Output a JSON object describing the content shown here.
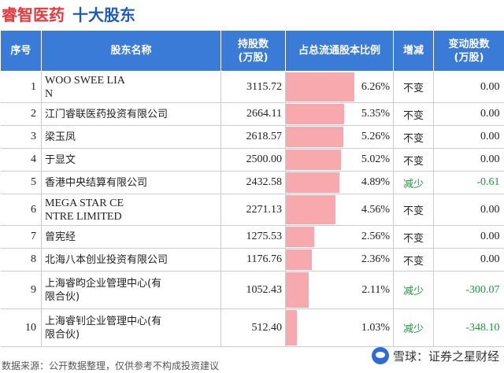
{
  "header": {
    "company": "睿智医药",
    "subtitle": "十大股东"
  },
  "table": {
    "headers": [
      "序号",
      "股东名称",
      "持股数\n(万股)",
      "占总流通股本比例",
      "增减",
      "变动股数\n(万股)"
    ],
    "rows": [
      {
        "idx": "1",
        "name": "WOO SWEE LIA\nN",
        "shares": "3115.72",
        "ratio": "6.26%",
        "ratio_value": 6.26,
        "change": "不变",
        "delta": "0.00"
      },
      {
        "idx": "2",
        "name": "江门睿联医药投资有限公司",
        "shares": "2664.11",
        "ratio": "5.35%",
        "ratio_value": 5.35,
        "change": "不变",
        "delta": "0.00"
      },
      {
        "idx": "3",
        "name": "梁玉凤",
        "shares": "2618.57",
        "ratio": "5.26%",
        "ratio_value": 5.26,
        "change": "不变",
        "delta": "0.00"
      },
      {
        "idx": "4",
        "name": "于显文",
        "shares": "2500.00",
        "ratio": "5.02%",
        "ratio_value": 5.02,
        "change": "不变",
        "delta": "0.00"
      },
      {
        "idx": "5",
        "name": "香港中央结算有限公司",
        "shares": "2432.58",
        "ratio": "4.89%",
        "ratio_value": 4.89,
        "change": "减少",
        "delta": "-0.61"
      },
      {
        "idx": "6",
        "name": "MEGA STAR CE\nNTRE LIMITED",
        "shares": "2271.13",
        "ratio": "4.56%",
        "ratio_value": 4.56,
        "change": "不变",
        "delta": "0.00"
      },
      {
        "idx": "7",
        "name": "曾宪经",
        "shares": "1275.53",
        "ratio": "2.56%",
        "ratio_value": 2.56,
        "change": "不变",
        "delta": "0.00"
      },
      {
        "idx": "8",
        "name": "北海八本创业投资有限公司",
        "shares": "1176.76",
        "ratio": "2.36%",
        "ratio_value": 2.36,
        "change": "不变",
        "delta": "0.00"
      },
      {
        "idx": "9",
        "name": "上海睿昀企业管理中心(有\n限合伙)",
        "shares": "1052.43",
        "ratio": "2.11%",
        "ratio_value": 2.11,
        "change": "减少",
        "delta": "-300.07"
      },
      {
        "idx": "10",
        "name": "上海睿钊企业管理中心(有\n限合伙)",
        "shares": "512.40",
        "ratio": "1.03%",
        "ratio_value": 1.03,
        "change": "减少",
        "delta": "-348.10"
      }
    ]
  },
  "footer": {
    "source": "数据来源：公开数据整理，仅供参考不构成投资建议",
    "brand": "雪球：证券之星财经"
  },
  "colors": {
    "company": "#e5383b",
    "subtitle": "#1f5bbd",
    "header_bg": "#3b7bd8",
    "bar": "#f7a9ad",
    "decrease": "#1a9a3a"
  }
}
